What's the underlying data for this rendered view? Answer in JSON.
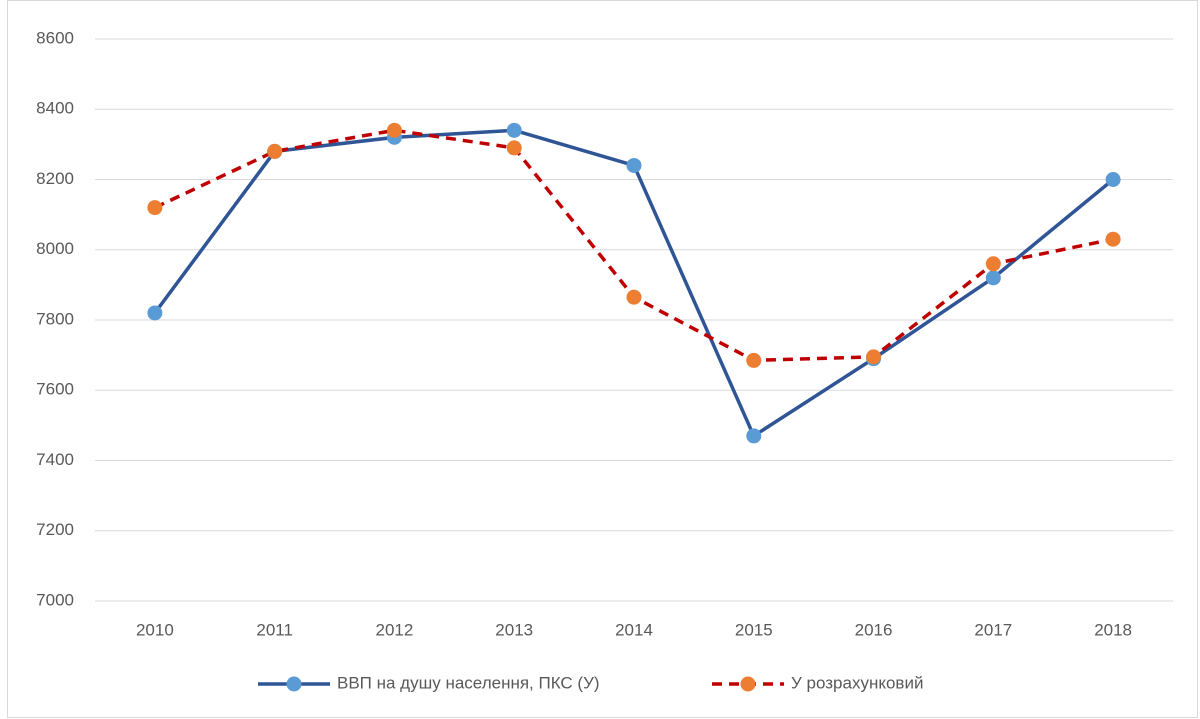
{
  "chart_data": {
    "type": "line",
    "categories": [
      "2010",
      "2011",
      "2012",
      "2013",
      "2014",
      "2015",
      "2016",
      "2017",
      "2018"
    ],
    "series": [
      {
        "name": "ВВП на душу населення, ПКС (У)",
        "color": "#2f5597",
        "marker_color": "#5b9bd5",
        "line_style": "solid",
        "values": [
          7820,
          8280,
          8320,
          8340,
          8240,
          7470,
          7690,
          7920,
          8200
        ]
      },
      {
        "name": "У розрахунковий",
        "color": "#c00000",
        "marker_color": "#ed7d31",
        "line_style": "dashed",
        "values": [
          8120,
          8280,
          8340,
          8290,
          7865,
          7685,
          7695,
          7960,
          8030
        ]
      }
    ],
    "ylim": [
      7000,
      8600
    ],
    "yticks": [
      7000,
      7200,
      7400,
      7600,
      7800,
      8000,
      8200,
      8400,
      8600
    ],
    "grid": true,
    "legend": "bottom"
  }
}
